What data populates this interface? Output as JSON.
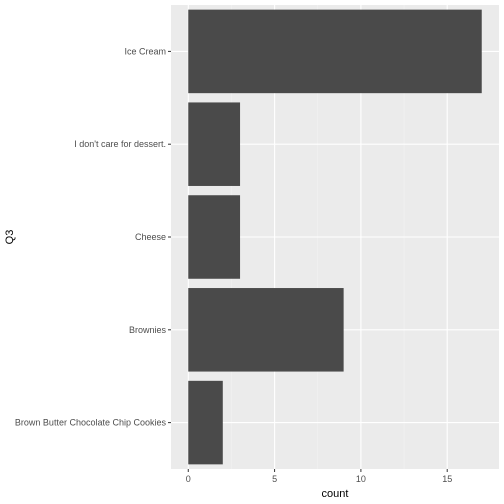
{
  "chart_data": {
    "type": "bar",
    "orientation": "horizontal",
    "categories": [
      "Ice Cream",
      "I don't care for dessert.",
      "Cheese",
      "Brownies",
      "Brown Butter Chocolate Chip Cookies"
    ],
    "values": [
      17,
      3,
      3,
      9,
      2
    ],
    "xlabel": "count",
    "ylabel": "Q3",
    "xlim": [
      -1,
      18
    ],
    "xticks": [
      0,
      5,
      10,
      15
    ],
    "grid": true,
    "colors": {
      "bar": "#4a4a4a",
      "panel": "#ebebeb",
      "grid_major": "#ffffff",
      "grid_minor": "#f2f2f2",
      "tick_text": "#4d4d4d"
    }
  }
}
